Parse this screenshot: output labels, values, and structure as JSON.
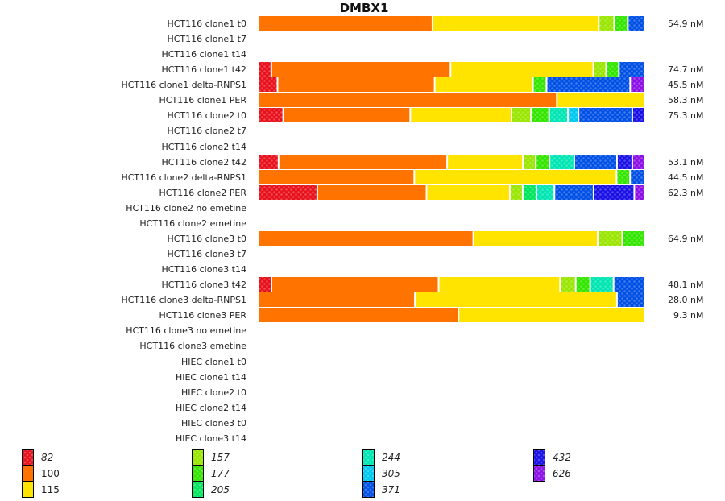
{
  "chart_data": {
    "type": "bar",
    "orientation": "horizontal",
    "stacked": true,
    "normalized": true,
    "title": "DMBX1",
    "xlabel": "",
    "ylabel": "",
    "legend_position": "bottom",
    "categories": [
      "HCT116 clone1 t0",
      "HCT116 clone1 t7",
      "HCT116 clone1 t14",
      "HCT116 clone1 t42",
      "HCT116 clone1 delta-RNPS1",
      "HCT116 clone1 PER",
      "HCT116 clone2 t0",
      "HCT116 clone2 t7",
      "HCT116 clone2 t14",
      "HCT116 clone2 t42",
      "HCT116 clone2 delta-RNPS1",
      "HCT116 clone2 PER",
      "HCT116 clone2 no emetine",
      "HCT116 clone2 emetine",
      "HCT116 clone3 t0",
      "HCT116 clone3 t7",
      "HCT116 clone3 t14",
      "HCT116 clone3 t42",
      "HCT116 clone3 delta-RNPS1",
      "HCT116 clone3 PER",
      "HCT116 clone3 no emetine",
      "HCT116 clone3 emetine",
      "HIEC clone1 t0",
      "HIEC clone1 t14",
      "HIEC clone2 t0",
      "HIEC clone2 t14",
      "HIEC clone3 t0",
      "HIEC clone3 t14"
    ],
    "row_totals": [
      "54.9 nM",
      "",
      "",
      "74.7 nM",
      "45.5 nM",
      "58.3 nM",
      "75.3 nM",
      "",
      "",
      "53.1 nM",
      "44.5 nM",
      "62.3 nM",
      "",
      "",
      "64.9 nM",
      "",
      "",
      "48.1 nM",
      "28.0 nM",
      "9.3 nM",
      "",
      "",
      "",
      "",
      "",
      "",
      "",
      ""
    ],
    "series": [
      {
        "name": "82",
        "color": "#e8101a",
        "pattern": true,
        "italic": true,
        "values": [
          0,
          0,
          0,
          3.5,
          5.1,
          0,
          6.5,
          0,
          0,
          5.3,
          0,
          15.2,
          0,
          0,
          0,
          0,
          0,
          3.5,
          0,
          0,
          0,
          0,
          0,
          0,
          0,
          0,
          0,
          0
        ]
      },
      {
        "name": "100",
        "color": "#ff7300",
        "pattern": false,
        "italic": false,
        "values": [
          45.1,
          0,
          0,
          46.3,
          40.6,
          77.2,
          32.4,
          0,
          0,
          43.0,
          40.4,
          27.9,
          0,
          0,
          55.3,
          0,
          0,
          42.8,
          40.6,
          51.8,
          0,
          0,
          0,
          0,
          0,
          0,
          0,
          0
        ]
      },
      {
        "name": "115",
        "color": "#ffe400",
        "pattern": false,
        "italic": false,
        "values": [
          42.9,
          0,
          0,
          36.9,
          25.4,
          22.8,
          25.8,
          0,
          0,
          19.3,
          52.2,
          21.3,
          0,
          0,
          31.9,
          0,
          0,
          31.1,
          52.2,
          48.2,
          0,
          0,
          0,
          0,
          0,
          0,
          0,
          0
        ]
      },
      {
        "name": "157",
        "color": "#99e600",
        "pattern": true,
        "italic": true,
        "values": [
          4.0,
          0,
          0,
          3.3,
          0,
          0,
          5.0,
          0,
          0,
          3.3,
          0,
          3.3,
          0,
          0,
          6.3,
          0,
          0,
          4.0,
          0,
          0,
          0,
          0,
          0,
          0,
          0,
          0,
          0,
          0
        ]
      },
      {
        "name": "177",
        "color": "#33e600",
        "pattern": true,
        "italic": true,
        "values": [
          3.5,
          0,
          0,
          3.3,
          3.5,
          0,
          4.6,
          0,
          0,
          3.5,
          3.5,
          0,
          0,
          0,
          5.9,
          0,
          0,
          3.7,
          0,
          0,
          0,
          0,
          0,
          0,
          0,
          0,
          0,
          0
        ]
      },
      {
        "name": "205",
        "color": "#00e65c",
        "pattern": true,
        "italic": true,
        "values": [
          0,
          0,
          0,
          0,
          0,
          0,
          0,
          0,
          0,
          0,
          0,
          3.5,
          0,
          0,
          0,
          0,
          0,
          0,
          0,
          0,
          0,
          0,
          0,
          0,
          0,
          0,
          0,
          0
        ]
      },
      {
        "name": "244",
        "color": "#00e6b3",
        "pattern": true,
        "italic": true,
        "values": [
          0,
          0,
          0,
          0,
          0,
          0,
          4.8,
          0,
          0,
          6.3,
          0,
          4.6,
          0,
          0,
          0,
          0,
          0,
          6.0,
          0,
          0,
          0,
          0,
          0,
          0,
          0,
          0,
          0,
          0
        ]
      },
      {
        "name": "305",
        "color": "#00c8f0",
        "pattern": true,
        "italic": true,
        "values": [
          0,
          0,
          0,
          0,
          0,
          0,
          2.7,
          0,
          0,
          0,
          0,
          0,
          0,
          0,
          0,
          0,
          0,
          0,
          0,
          0,
          0,
          0,
          0,
          0,
          0,
          0,
          0,
          0
        ]
      },
      {
        "name": "371",
        "color": "#0050e6",
        "pattern": true,
        "italic": true,
        "values": [
          4.5,
          0,
          0,
          6.8,
          21.6,
          0,
          13.7,
          0,
          0,
          10.9,
          3.9,
          10.0,
          0,
          0,
          0,
          0,
          0,
          8.1,
          7.3,
          0,
          0,
          0,
          0,
          0,
          0,
          0,
          0,
          0
        ]
      },
      {
        "name": "432",
        "color": "#1a10e6",
        "pattern": true,
        "italic": true,
        "values": [
          0,
          0,
          0,
          0,
          0,
          0,
          3.3,
          0,
          0,
          3.9,
          0,
          10.4,
          0,
          0,
          0,
          0,
          0,
          0,
          0,
          0,
          0,
          0,
          0,
          0,
          0,
          0,
          0,
          0
        ]
      },
      {
        "name": "626",
        "color": "#8c10e6",
        "pattern": true,
        "italic": true,
        "values": [
          0,
          0,
          0,
          0,
          3.9,
          0,
          0,
          0,
          0,
          3.3,
          0,
          2.8,
          0,
          0,
          0,
          0,
          0,
          0,
          0,
          0,
          0,
          0,
          0,
          0,
          0,
          0,
          0,
          0
        ]
      }
    ],
    "xlim": [
      0,
      100
    ],
    "grid": false
  }
}
